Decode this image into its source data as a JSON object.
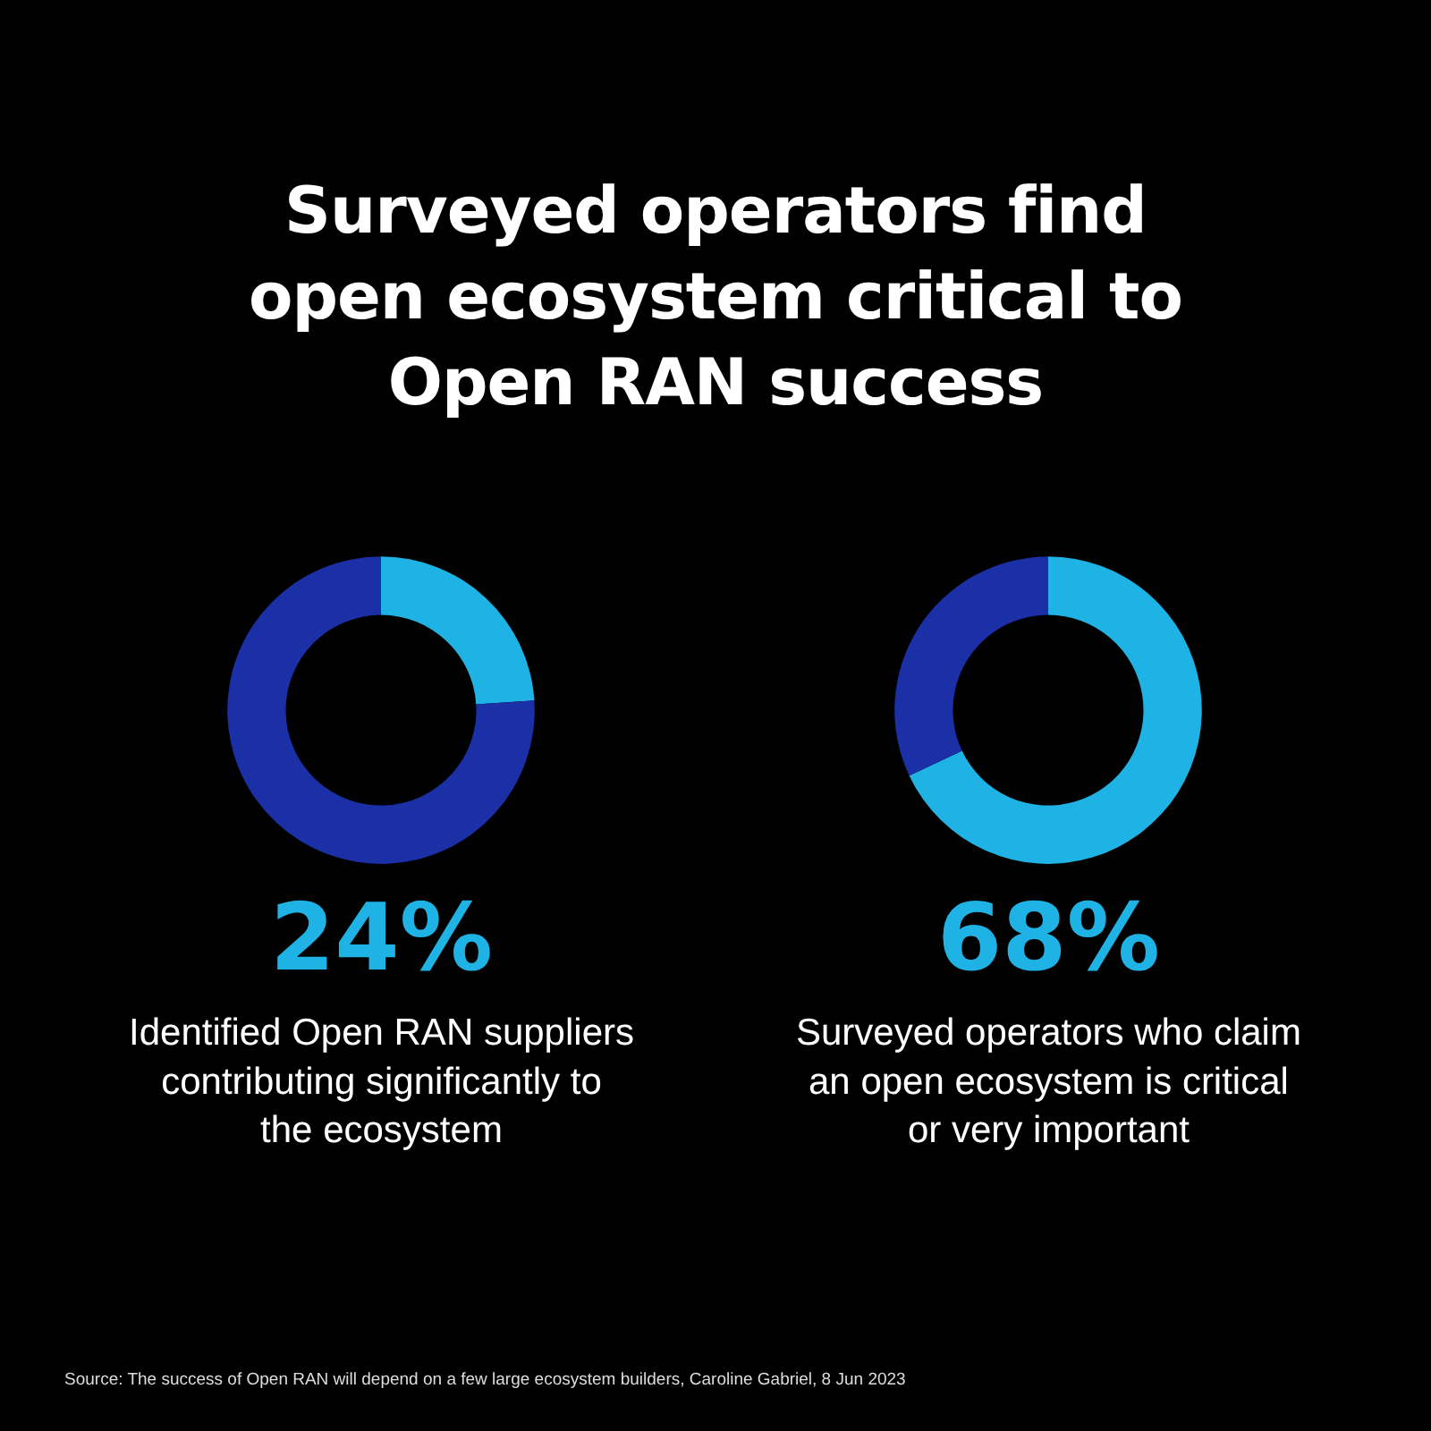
{
  "chart_data": [
    {
      "type": "donut",
      "title": "Surveyed operators find open ecosystem critical to Open RAN success",
      "categories": [
        null,
        null
      ],
      "values": [
        24,
        76
      ],
      "colors": [
        "#1fb3e5",
        "#1b2fa6"
      ],
      "legend": false,
      "annotations": [
        "24%",
        "Identified Open RAN suppliers contributing significantly to the ecosystem"
      ]
    },
    {
      "type": "donut",
      "categories": [
        null,
        null
      ],
      "values": [
        68,
        32
      ],
      "colors": [
        "#1fb3e5",
        "#1b2fa6"
      ],
      "legend": false,
      "annotations": [
        "68%",
        "Surveyed operators who claim an open ecosystem is critical or very important",
        "Source: The success of Open RAN will depend on a few large ecosystem builders, Caroline Gabriel, 8 Jun 2023"
      ]
    }
  ]
}
